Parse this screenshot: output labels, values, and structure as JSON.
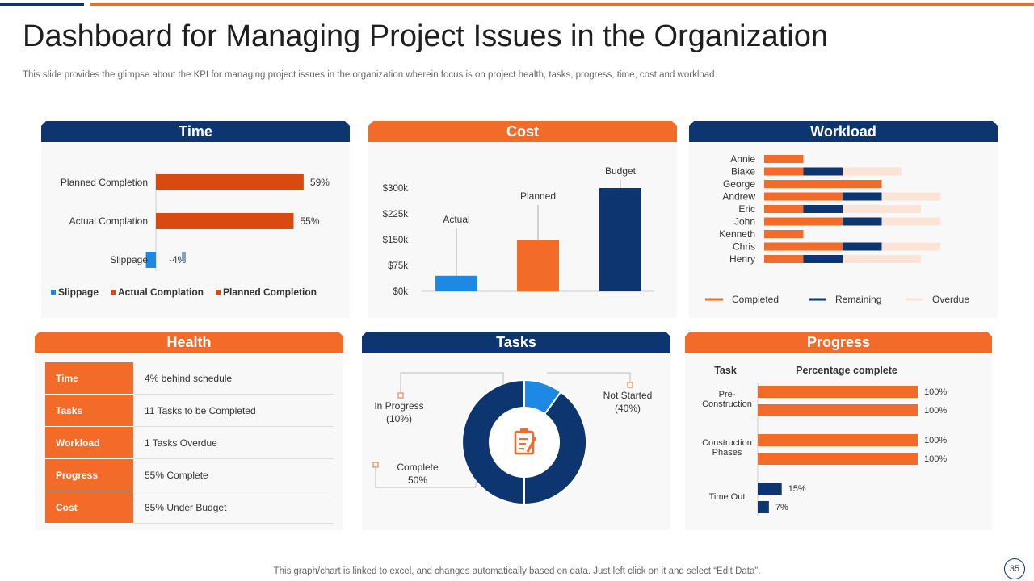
{
  "header": {
    "title": "Dashboard for Managing Project Issues in the Organization",
    "subtitle": "This slide provides the glimpse about the KPI for managing project issues in the organization wherein focus is on project health, tasks, progress, time, cost and workload."
  },
  "panels": {
    "time": "Time",
    "cost": "Cost",
    "workload": "Workload",
    "health": "Health",
    "tasks": "Tasks",
    "progress": "Progress"
  },
  "health": {
    "rows": [
      {
        "key": "Time",
        "value": "4% behind schedule"
      },
      {
        "key": "Tasks",
        "value": "11 Tasks to be Completed"
      },
      {
        "key": "Workload",
        "value": "1 Tasks Overdue"
      },
      {
        "key": "Progress",
        "value": "55% Complete"
      },
      {
        "key": "Cost",
        "value": "85% Under Budget"
      }
    ]
  },
  "colors": {
    "orange": "#f26b28",
    "dark_orange": "#d94a10",
    "navy": "#0d3570",
    "light_blue": "#1e88e5",
    "peach": "#fbe3d6"
  },
  "footer": {
    "note": "This graph/chart is linked to excel, and changes automatically based on data. Just left click on it and select “Edit Data”.",
    "page": "35"
  },
  "chart_data": [
    {
      "id": "time",
      "type": "bar",
      "orientation": "horizontal",
      "categories": [
        "Planned Completion",
        "Actual Complation",
        "Slippage"
      ],
      "values": [
        59,
        55,
        -4
      ],
      "value_labels": [
        "59%",
        "55%",
        "-4%"
      ],
      "legend": [
        "Slippage",
        "Actual Complation",
        "Planned Completion"
      ],
      "legend_position": "bottom"
    },
    {
      "id": "cost",
      "type": "bar",
      "categories": [
        "Actual",
        "Planned",
        "Budget"
      ],
      "values": [
        45,
        150,
        300
      ],
      "y_ticks": [
        "$0k",
        "$75k",
        "$150k",
        "$225k",
        "$300k"
      ],
      "ylim": [
        0,
        300
      ]
    },
    {
      "id": "workload",
      "type": "bar",
      "orientation": "horizontal",
      "stacked": true,
      "categories": [
        "Annie",
        "Blake",
        "George",
        "Andrew",
        "Eric",
        "John",
        "Kenneth",
        "Chris",
        "Henry"
      ],
      "series": [
        {
          "name": "Completed",
          "values": [
            1,
            1,
            3,
            2,
            1,
            2,
            1,
            2,
            1
          ]
        },
        {
          "name": "Remaining",
          "values": [
            0,
            1,
            0,
            1,
            1,
            1,
            0,
            1,
            1
          ]
        },
        {
          "name": "Overdue",
          "values": [
            0,
            1.5,
            0,
            1.5,
            2,
            1.5,
            0,
            1.5,
            2
          ]
        }
      ],
      "legend_position": "bottom"
    },
    {
      "id": "tasks",
      "type": "pie",
      "donut": true,
      "slices": [
        {
          "name": "In Progress",
          "value": 10,
          "label": "In Progress\n(10%)"
        },
        {
          "name": "Not Started",
          "value": 40,
          "label": "Not Started\n(40%)"
        },
        {
          "name": "Complete",
          "value": 50,
          "label": "Complete\n50%"
        }
      ]
    },
    {
      "id": "progress",
      "type": "bar",
      "orientation": "horizontal",
      "column_headers": [
        "Task",
        "Percentage complete"
      ],
      "groups": [
        {
          "name": "Pre-\nConstruction",
          "values": [
            100,
            100
          ]
        },
        {
          "name": "Construction\nPhases",
          "values": [
            100,
            100
          ]
        },
        {
          "name": "Time Out",
          "values": [
            15,
            7
          ]
        }
      ],
      "value_suffix": "%"
    }
  ]
}
